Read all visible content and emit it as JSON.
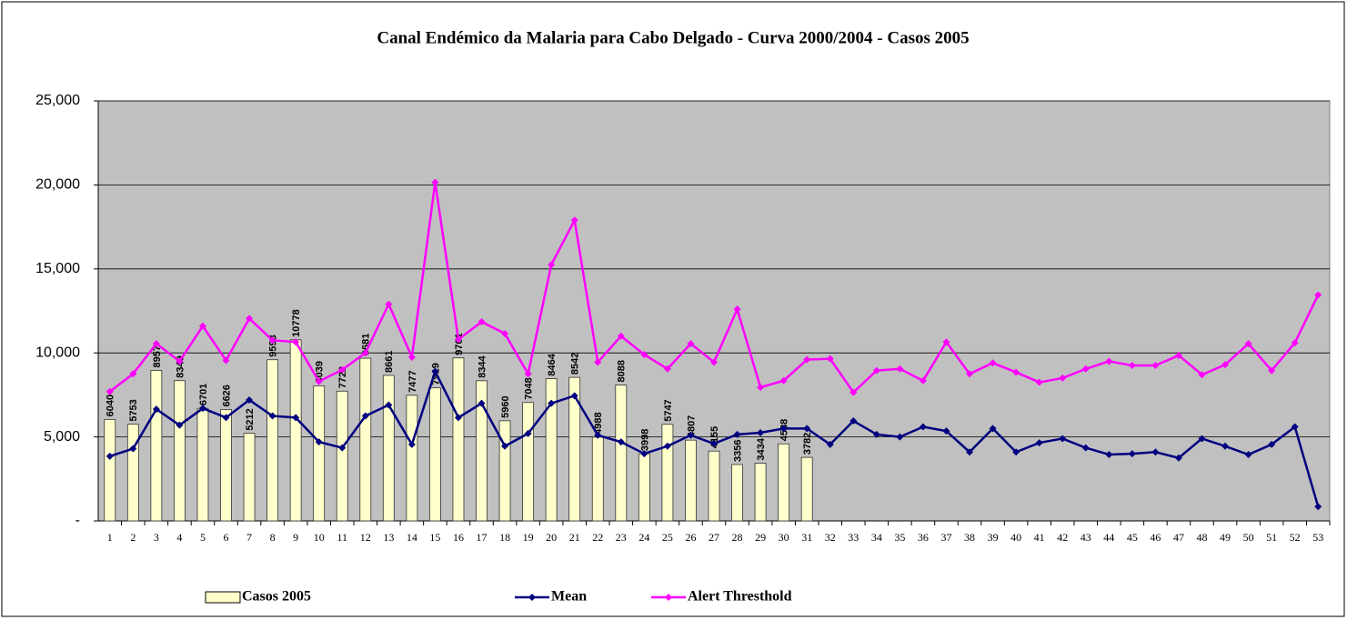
{
  "chart_data": {
    "type": "bar",
    "title": "Canal Endémico da Malaria para Cabo Delgado - Curva 2000/2004 - Casos 2005",
    "categories": [
      "1",
      "2",
      "3",
      "4",
      "5",
      "6",
      "7",
      "8",
      "9",
      "10",
      "11",
      "12",
      "13",
      "14",
      "15",
      "16",
      "17",
      "18",
      "19",
      "20",
      "21",
      "22",
      "23",
      "24",
      "25",
      "26",
      "27",
      "28",
      "29",
      "30",
      "31",
      "32",
      "33",
      "34",
      "35",
      "36",
      "37",
      "38",
      "39",
      "40",
      "41",
      "42",
      "43",
      "44",
      "45",
      "46",
      "47",
      "48",
      "49",
      "50",
      "51",
      "52",
      "53"
    ],
    "series": [
      {
        "name": "Casos 2005",
        "type": "bar",
        "color": "#ffffcc",
        "values": [
          6040,
          5753,
          8957,
          8349,
          6701,
          6626,
          5212,
          9593,
          10778,
          8039,
          7722,
          9681,
          8661,
          7477,
          7919,
          9701,
          8344,
          5960,
          7048,
          8464,
          8542,
          4988,
          8088,
          3998,
          5747,
          4807,
          4155,
          3356,
          3434,
          4588,
          3782,
          null,
          null,
          null,
          null,
          null,
          null,
          null,
          null,
          null,
          null,
          null,
          null,
          null,
          null,
          null,
          null,
          null,
          null,
          null,
          null,
          null,
          null
        ]
      },
      {
        "name": "Mean",
        "type": "line",
        "color": "#000080",
        "values": [
          3850,
          4300,
          6650,
          5700,
          6700,
          6150,
          7200,
          6250,
          6150,
          4700,
          4350,
          6250,
          6900,
          4550,
          8900,
          6150,
          7000,
          4450,
          5200,
          7000,
          7450,
          5100,
          4700,
          4000,
          4450,
          5100,
          4600,
          5150,
          5250,
          5500,
          5500,
          4550,
          5950,
          5150,
          5000,
          5600,
          5350,
          4100,
          5500,
          4100,
          4650,
          4900,
          4350,
          3950,
          4000,
          4100,
          3750,
          4900,
          4450,
          3950,
          4550,
          5600,
          850
        ]
      },
      {
        "name": "Alert Thresthold",
        "type": "line",
        "color": "#ff00ff",
        "values": [
          7700,
          8750,
          10550,
          9500,
          11600,
          9550,
          12050,
          10750,
          10650,
          8300,
          9000,
          10000,
          12900,
          9750,
          20150,
          10800,
          11850,
          11150,
          8750,
          15250,
          17900,
          9450,
          11000,
          9900,
          9050,
          10550,
          9450,
          12600,
          7950,
          8350,
          9600,
          9650,
          7650,
          8950,
          9050,
          8350,
          10650,
          8750,
          9400,
          8850,
          8250,
          8500,
          9050,
          9500,
          9250,
          9250,
          9850,
          8700,
          9300,
          10550,
          8950,
          10600,
          13450
        ]
      }
    ],
    "ylim": [
      0,
      25000
    ],
    "yticks": [
      {
        "value": 0,
        "label": "-"
      },
      {
        "value": 5000,
        "label": "5,000"
      },
      {
        "value": 10000,
        "label": "10,000"
      },
      {
        "value": 15000,
        "label": "15,000"
      },
      {
        "value": 20000,
        "label": "20,000"
      },
      {
        "value": 25000,
        "label": "25,000"
      }
    ],
    "grid": true,
    "legend": "bottom",
    "plot_background": "#c0c0c0"
  }
}
